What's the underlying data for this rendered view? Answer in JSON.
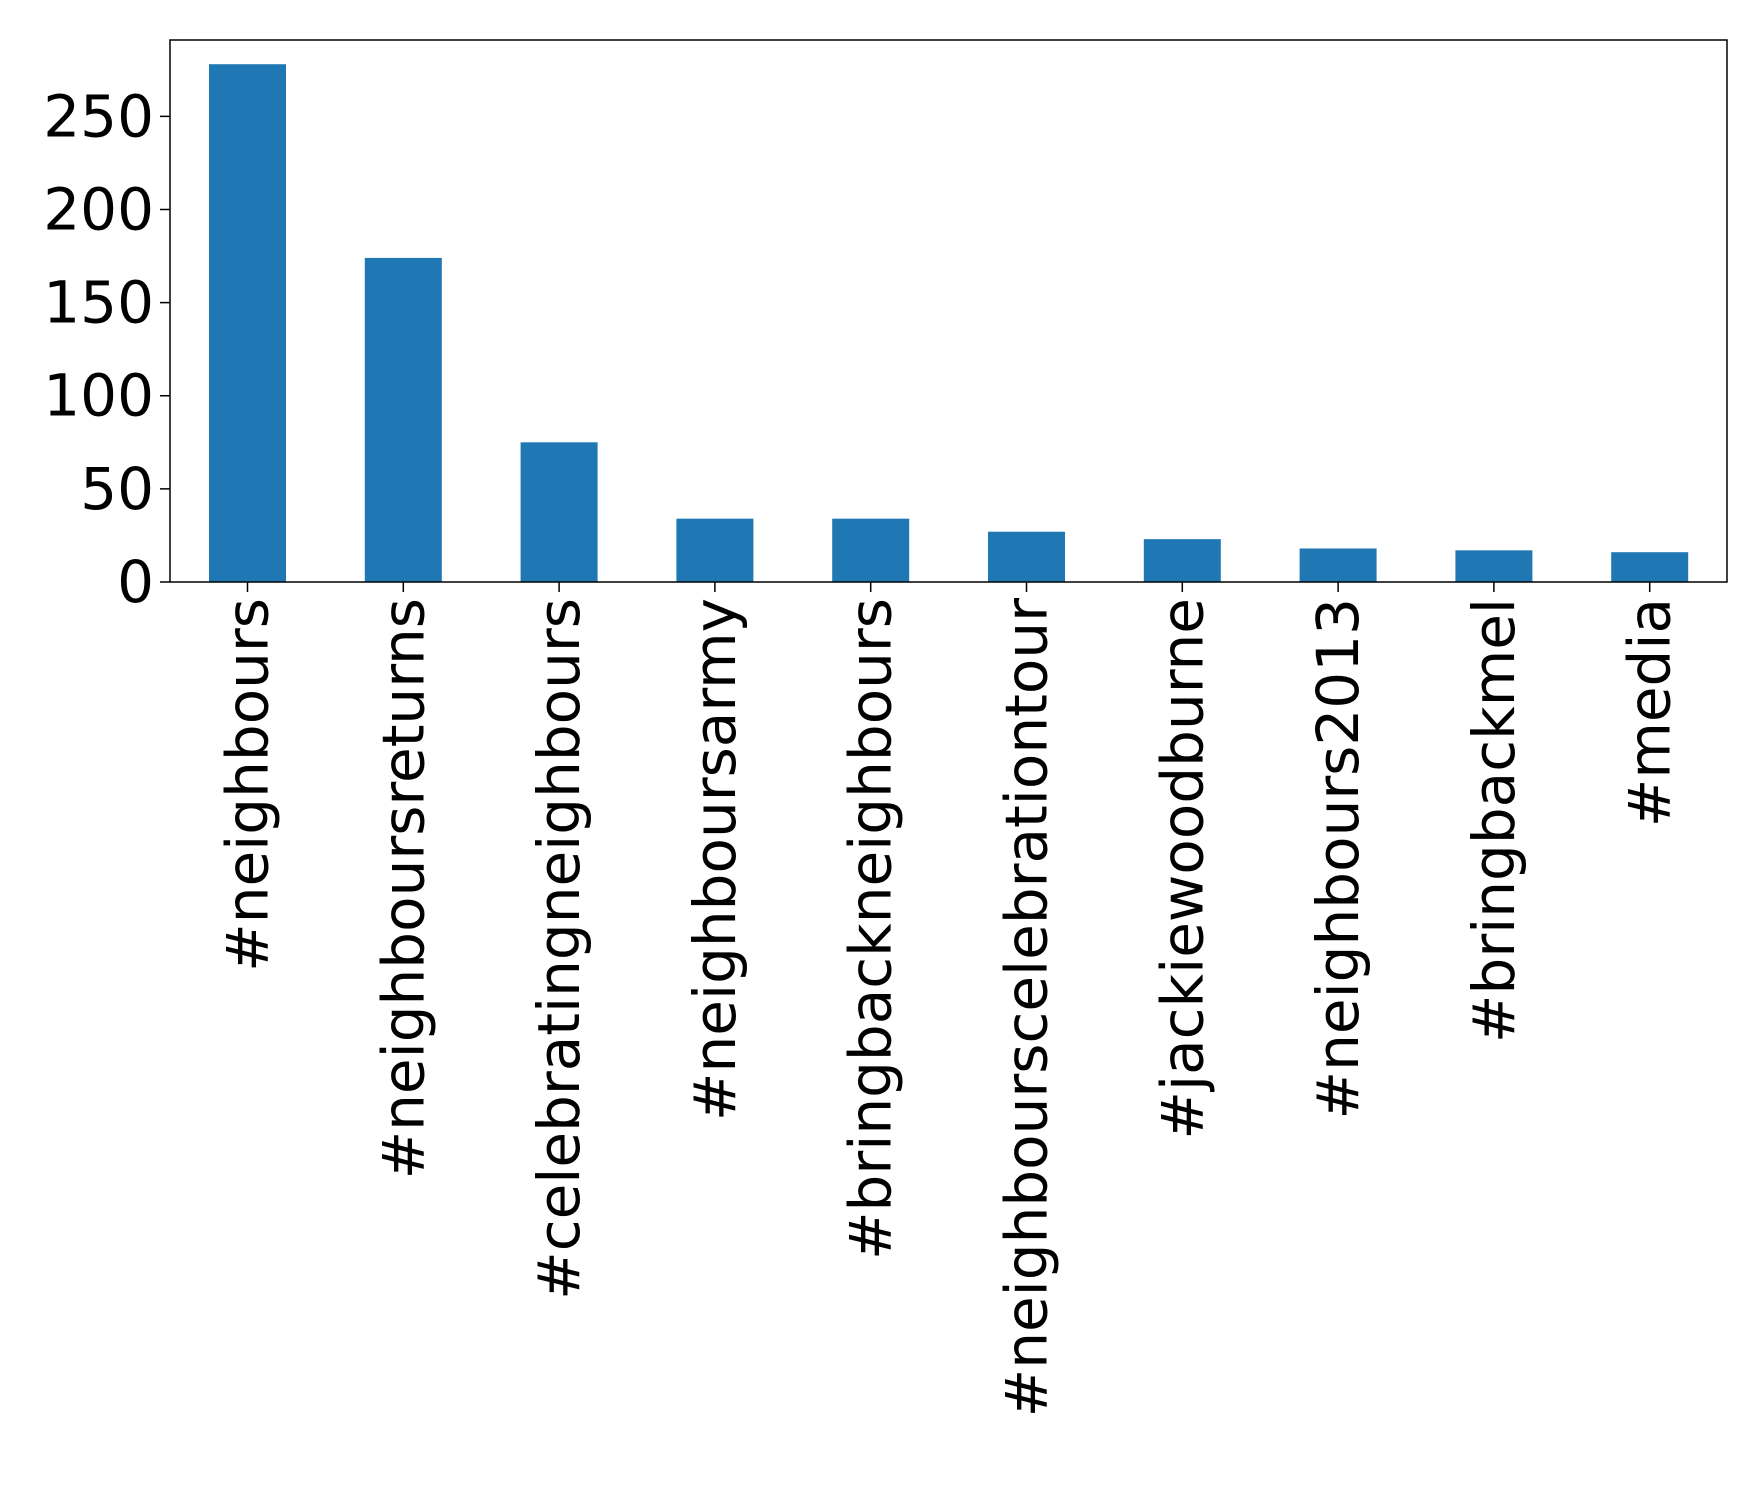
{
  "chart_data": {
    "type": "bar",
    "title": "",
    "xlabel": "",
    "ylabel": "",
    "categories": [
      "#neighbours",
      "#neighboursreturns",
      "#celebratingneighbours",
      "#neighboursarmy",
      "#bringbackneighbours",
      "#neighbourscelebrationtour",
      "#jackiewoodburne",
      "#neighbours2013",
      "#bringbackmel",
      "#media"
    ],
    "values": [
      278,
      174,
      75,
      34,
      34,
      27,
      23,
      18,
      17,
      16
    ],
    "ylim": [
      0,
      291
    ],
    "yticks": [
      0,
      50,
      100,
      150,
      200,
      250
    ],
    "ytick_labels": [
      "0",
      "50",
      "100",
      "150",
      "200",
      "250"
    ],
    "bar_color": "#1f77b4",
    "grid": false,
    "legend": "none"
  }
}
